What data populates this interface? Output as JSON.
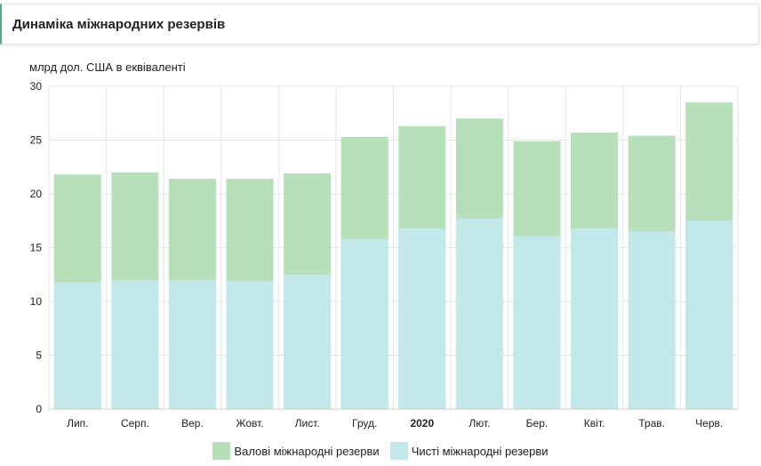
{
  "header": {
    "title": "Динаміка міжнародних резервів"
  },
  "chart_data": {
    "type": "bar",
    "stacked": "overlay",
    "title": "Динаміка міжнародних резервів",
    "ylabel": "млрд дол. США в еквіваленті",
    "xlabel": "",
    "ylim": [
      0,
      30
    ],
    "yticks": [
      0,
      5,
      10,
      15,
      20,
      25,
      30
    ],
    "categories": [
      "Лип.",
      "Серп.",
      "Вер.",
      "Жовт.",
      "Лист.",
      "Груд.",
      "2020",
      "Лют.",
      "Бер.",
      "Квіт.",
      "Трав.",
      "Черв."
    ],
    "bold_categories": [
      "2020"
    ],
    "grid": true,
    "legend_position": "bottom-center",
    "series": [
      {
        "name": "Валові міжнародні резерви",
        "color": "#b7dfb9",
        "values": [
          21.8,
          22.0,
          21.4,
          21.4,
          21.9,
          25.3,
          26.3,
          27.0,
          24.9,
          25.7,
          25.4,
          28.5
        ]
      },
      {
        "name": "Чисті міжнародні резерви",
        "color": "#c2e8ea",
        "values": [
          11.8,
          12.0,
          12.0,
          11.9,
          12.5,
          15.8,
          16.8,
          17.7,
          16.1,
          16.8,
          16.5,
          17.5
        ]
      }
    ]
  }
}
